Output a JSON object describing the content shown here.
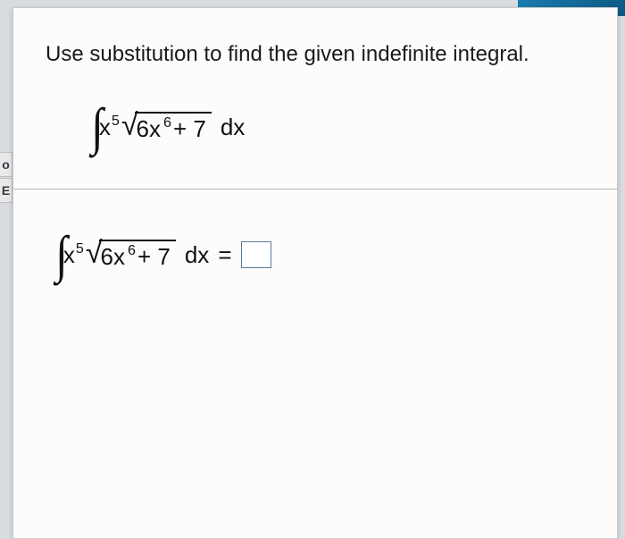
{
  "topbar": {
    "color_left": "#1a7cb0",
    "color_right": "#0d5a85"
  },
  "page": {
    "background": "#fdfcfa"
  },
  "tabs": {
    "t0": "o",
    "t1": "E"
  },
  "instruction": "Use substitution to find the given indefinite integral.",
  "integral": {
    "outer_base": "x",
    "outer_exp": "5",
    "inner_coeff": "6x",
    "inner_exp": "6",
    "inner_const": "+ 7",
    "dx": "dx"
  },
  "equals": "="
}
